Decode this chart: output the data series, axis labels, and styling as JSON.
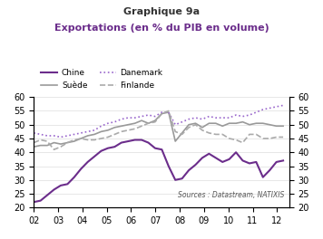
{
  "title1": "Graphique 9a",
  "title2": "Exportations (en % du PIB en volume)",
  "source_text": "Sources : Datastream, NATIXIS",
  "ylim": [
    20,
    60
  ],
  "yticks": [
    20,
    25,
    30,
    35,
    40,
    45,
    50,
    55,
    60
  ],
  "xtick_labels": [
    "02",
    "03",
    "04",
    "05",
    "06",
    "07",
    "08",
    "09",
    "10",
    "11",
    "12"
  ],
  "chine_color": "#6B2D8B",
  "suede_color": "#999999",
  "danemark_color": "#9966CC",
  "finlande_color": "#AAAAAA",
  "chine": [
    22.0,
    22.5,
    24.5,
    26.5,
    28.0,
    28.5,
    31.0,
    34.0,
    36.5,
    38.5,
    40.5,
    41.5,
    42.0,
    43.5,
    44.0,
    44.5,
    44.5,
    43.5,
    41.5,
    41.0,
    35.0,
    30.0,
    30.5,
    33.5,
    35.5,
    38.0,
    39.5,
    38.0,
    36.5,
    37.5,
    40.0,
    37.0,
    36.0,
    36.5,
    31.0,
    33.5,
    36.5,
    37.0
  ],
  "suede": [
    42.0,
    42.5,
    42.5,
    43.5,
    43.0,
    43.5,
    44.0,
    45.0,
    46.0,
    46.5,
    47.5,
    48.0,
    49.0,
    49.5,
    50.0,
    50.5,
    51.5,
    50.5,
    51.5,
    54.0,
    54.5,
    44.0,
    47.0,
    50.0,
    50.5,
    49.0,
    50.5,
    50.5,
    49.5,
    50.5,
    50.5,
    51.0,
    50.0,
    50.5,
    50.5,
    50.0,
    49.5,
    49.5
  ],
  "danemark": [
    47.0,
    46.5,
    46.0,
    46.0,
    45.5,
    46.0,
    46.5,
    47.0,
    47.5,
    48.0,
    49.5,
    50.5,
    51.0,
    52.0,
    52.5,
    52.5,
    53.0,
    53.5,
    53.0,
    54.5,
    54.5,
    50.0,
    51.0,
    52.0,
    52.5,
    52.0,
    53.0,
    52.5,
    52.5,
    52.5,
    53.5,
    53.0,
    53.5,
    54.5,
    55.5,
    56.0,
    56.5,
    57.0
  ],
  "finlande": [
    43.5,
    44.5,
    44.0,
    41.0,
    42.0,
    43.5,
    44.5,
    45.0,
    44.5,
    44.5,
    45.0,
    45.5,
    46.5,
    47.5,
    48.0,
    48.5,
    49.5,
    50.5,
    51.0,
    54.0,
    55.0,
    47.5,
    46.5,
    49.0,
    50.0,
    48.0,
    47.0,
    46.5,
    46.5,
    45.0,
    44.5,
    43.5,
    46.5,
    46.5,
    45.0,
    45.0,
    45.5,
    45.5
  ]
}
